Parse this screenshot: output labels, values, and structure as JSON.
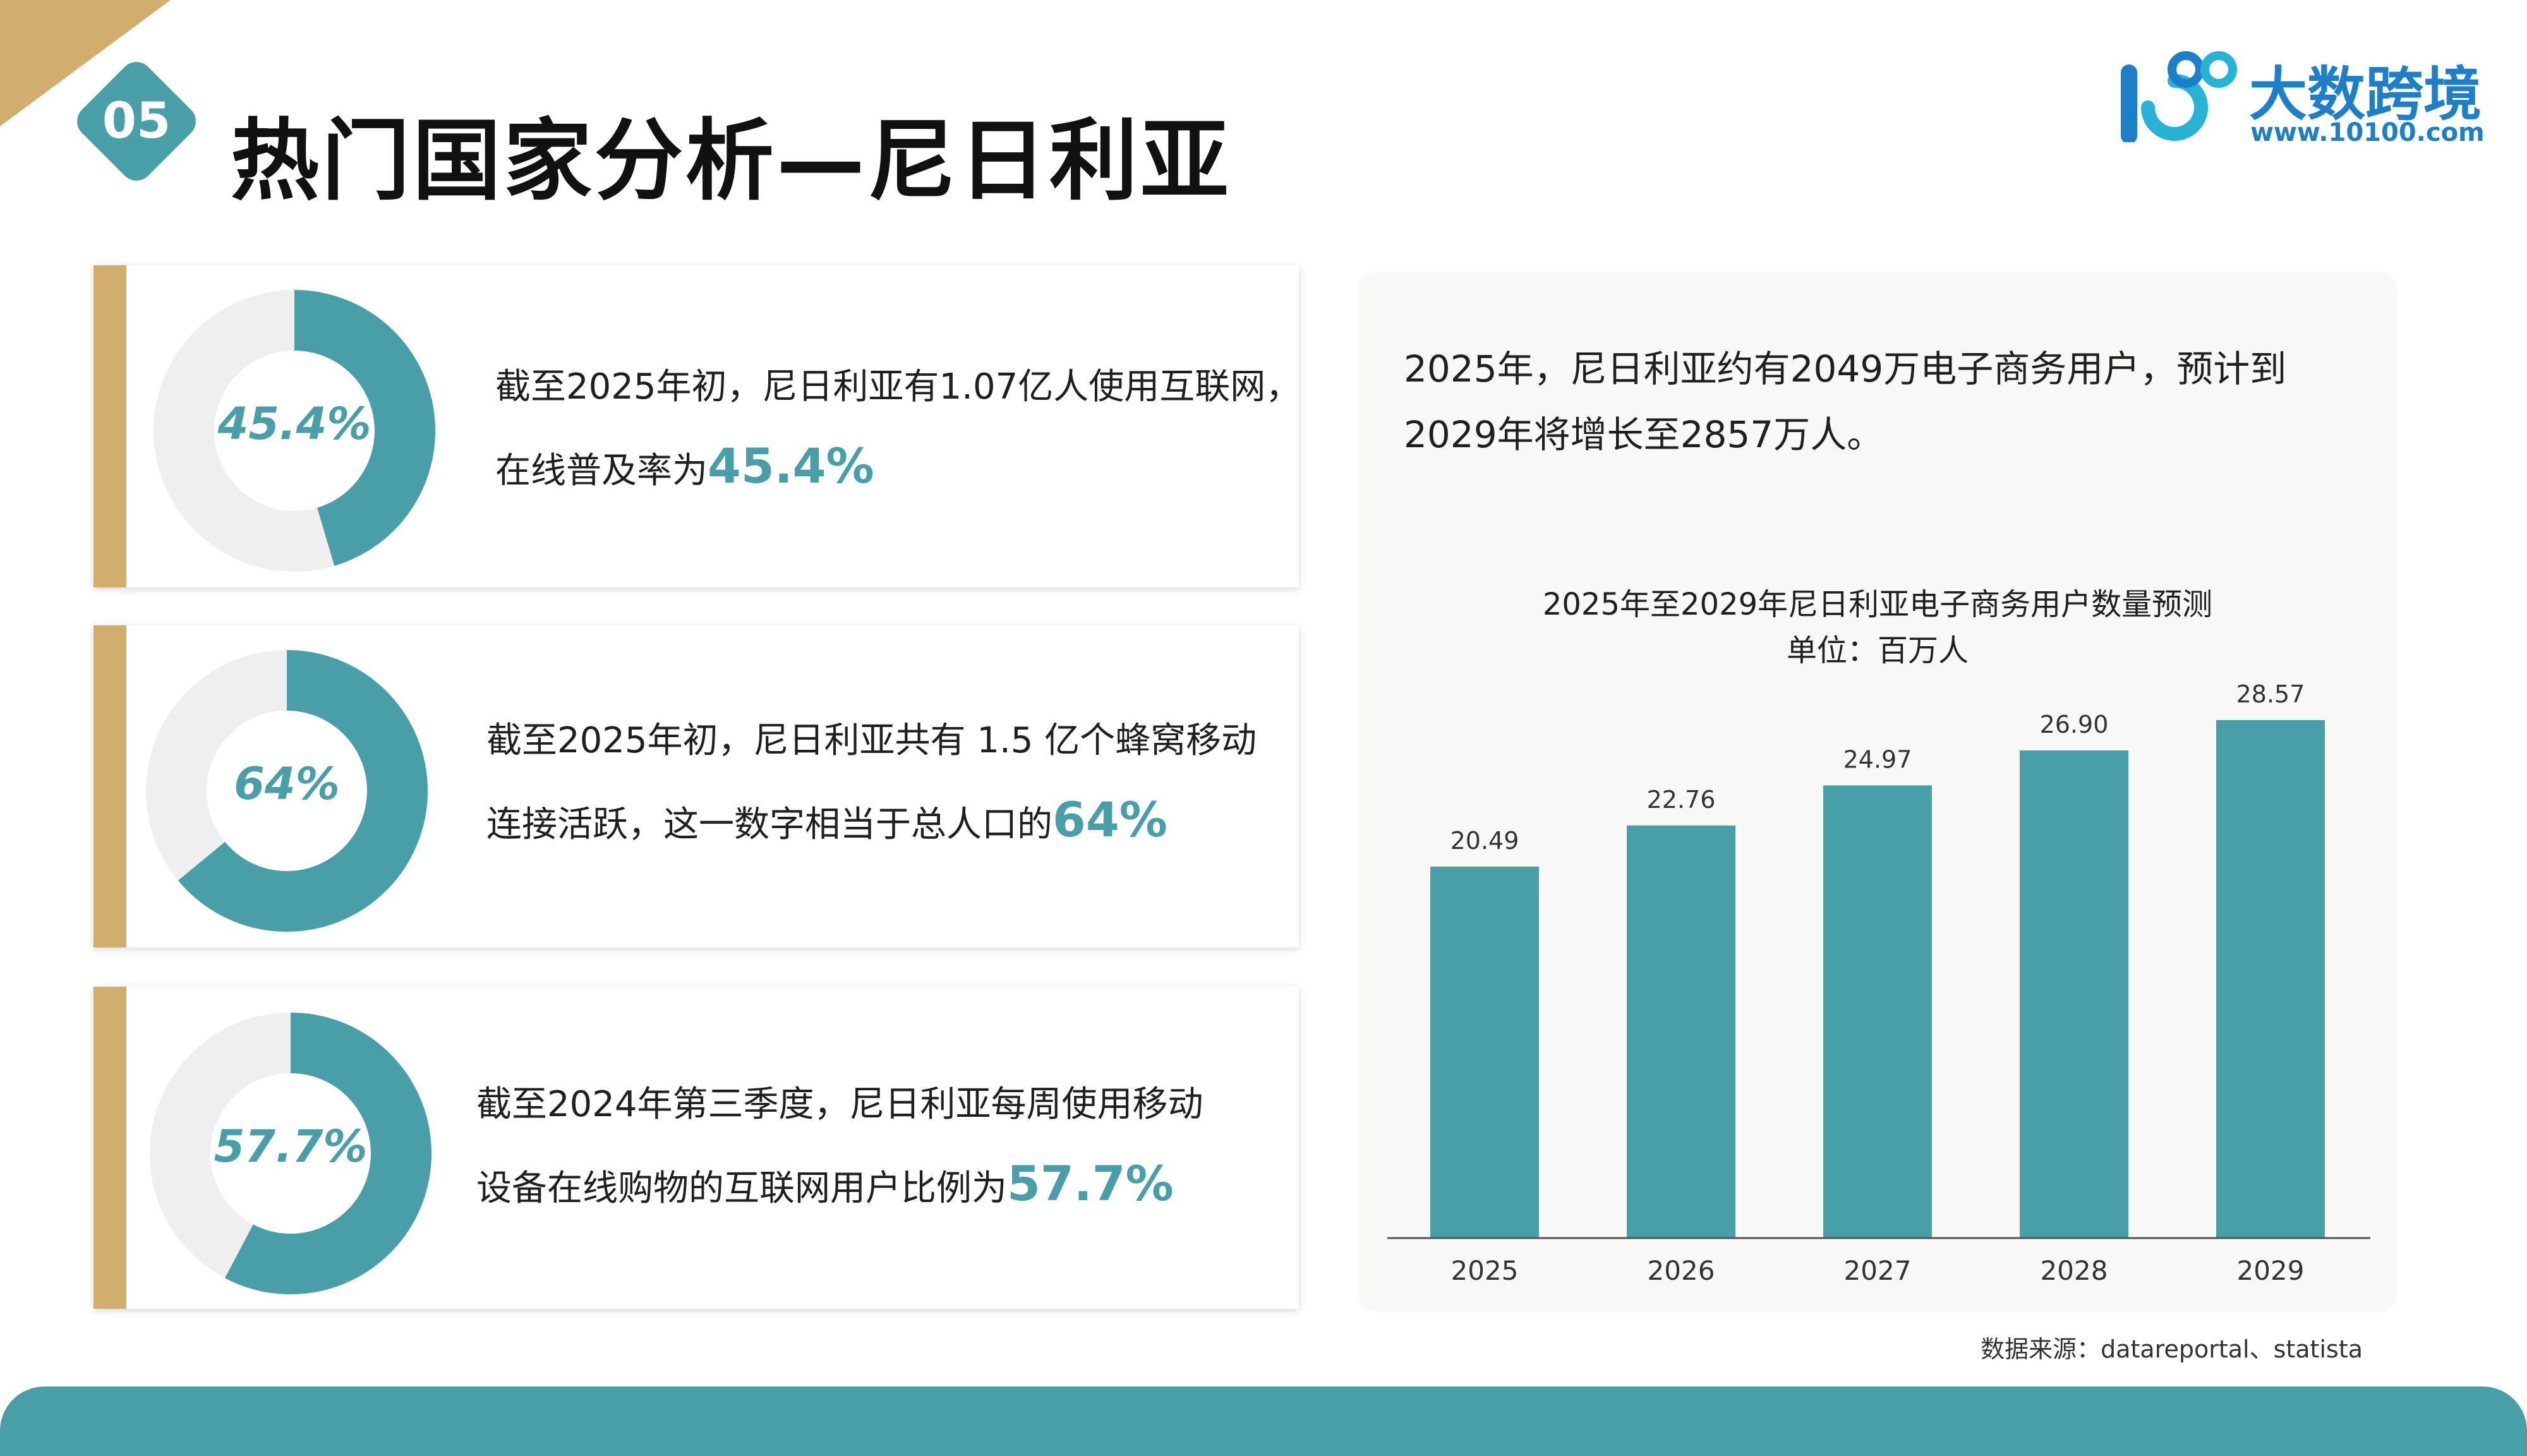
{
  "header": {
    "section_number": "05",
    "title": "热门国家分析—尼日利亚"
  },
  "logo": {
    "name": "大数跨境",
    "url": "www.10100.com"
  },
  "colors": {
    "accent": "#489fa8",
    "gold": "#d2ae6d",
    "track": "#efefef",
    "logo_blue": "#1d7fc9"
  },
  "cards": [
    {
      "percent_label": "45.4%",
      "fraction": 0.454,
      "text_line1": "截至2025年初，尼日利亚有1.07亿人使用互联网，",
      "text_line2": "在线普及率为",
      "highlight": "45.4%"
    },
    {
      "percent_label": "64%",
      "fraction": 0.64,
      "text_line1": "截至2025年初，尼日利亚共有 1.5 亿个蜂窝移动",
      "text_line2": "连接活跃，这一数字相当于总人口的",
      "highlight": "64%"
    },
    {
      "percent_label": "57.7%",
      "fraction": 0.577,
      "text_line1": "截至2024年第三季度，尼日利亚每周使用移动",
      "text_line2": "设备在线购物的互联网用户比例为",
      "highlight": "57.7%"
    }
  ],
  "chart_panel": {
    "description": "2025年，尼日利亚约有2049万电子商务用户，预计到2029年将增长至2857万人。"
  },
  "chart_data": {
    "type": "bar",
    "title": "2025年至2029年尼日利亚电子商务用户数量预测",
    "subtitle": "单位：百万人",
    "categories": [
      "2025",
      "2026",
      "2027",
      "2028",
      "2029"
    ],
    "values": [
      20.49,
      22.76,
      24.97,
      26.9,
      28.57
    ],
    "value_labels": [
      "20.49",
      "22.76",
      "24.97",
      "26.90",
      "28.57"
    ],
    "ylim": [
      0,
      28.57
    ],
    "grid": false,
    "legend": "none"
  },
  "footer": {
    "source": "数据来源：datareportal、statista"
  }
}
